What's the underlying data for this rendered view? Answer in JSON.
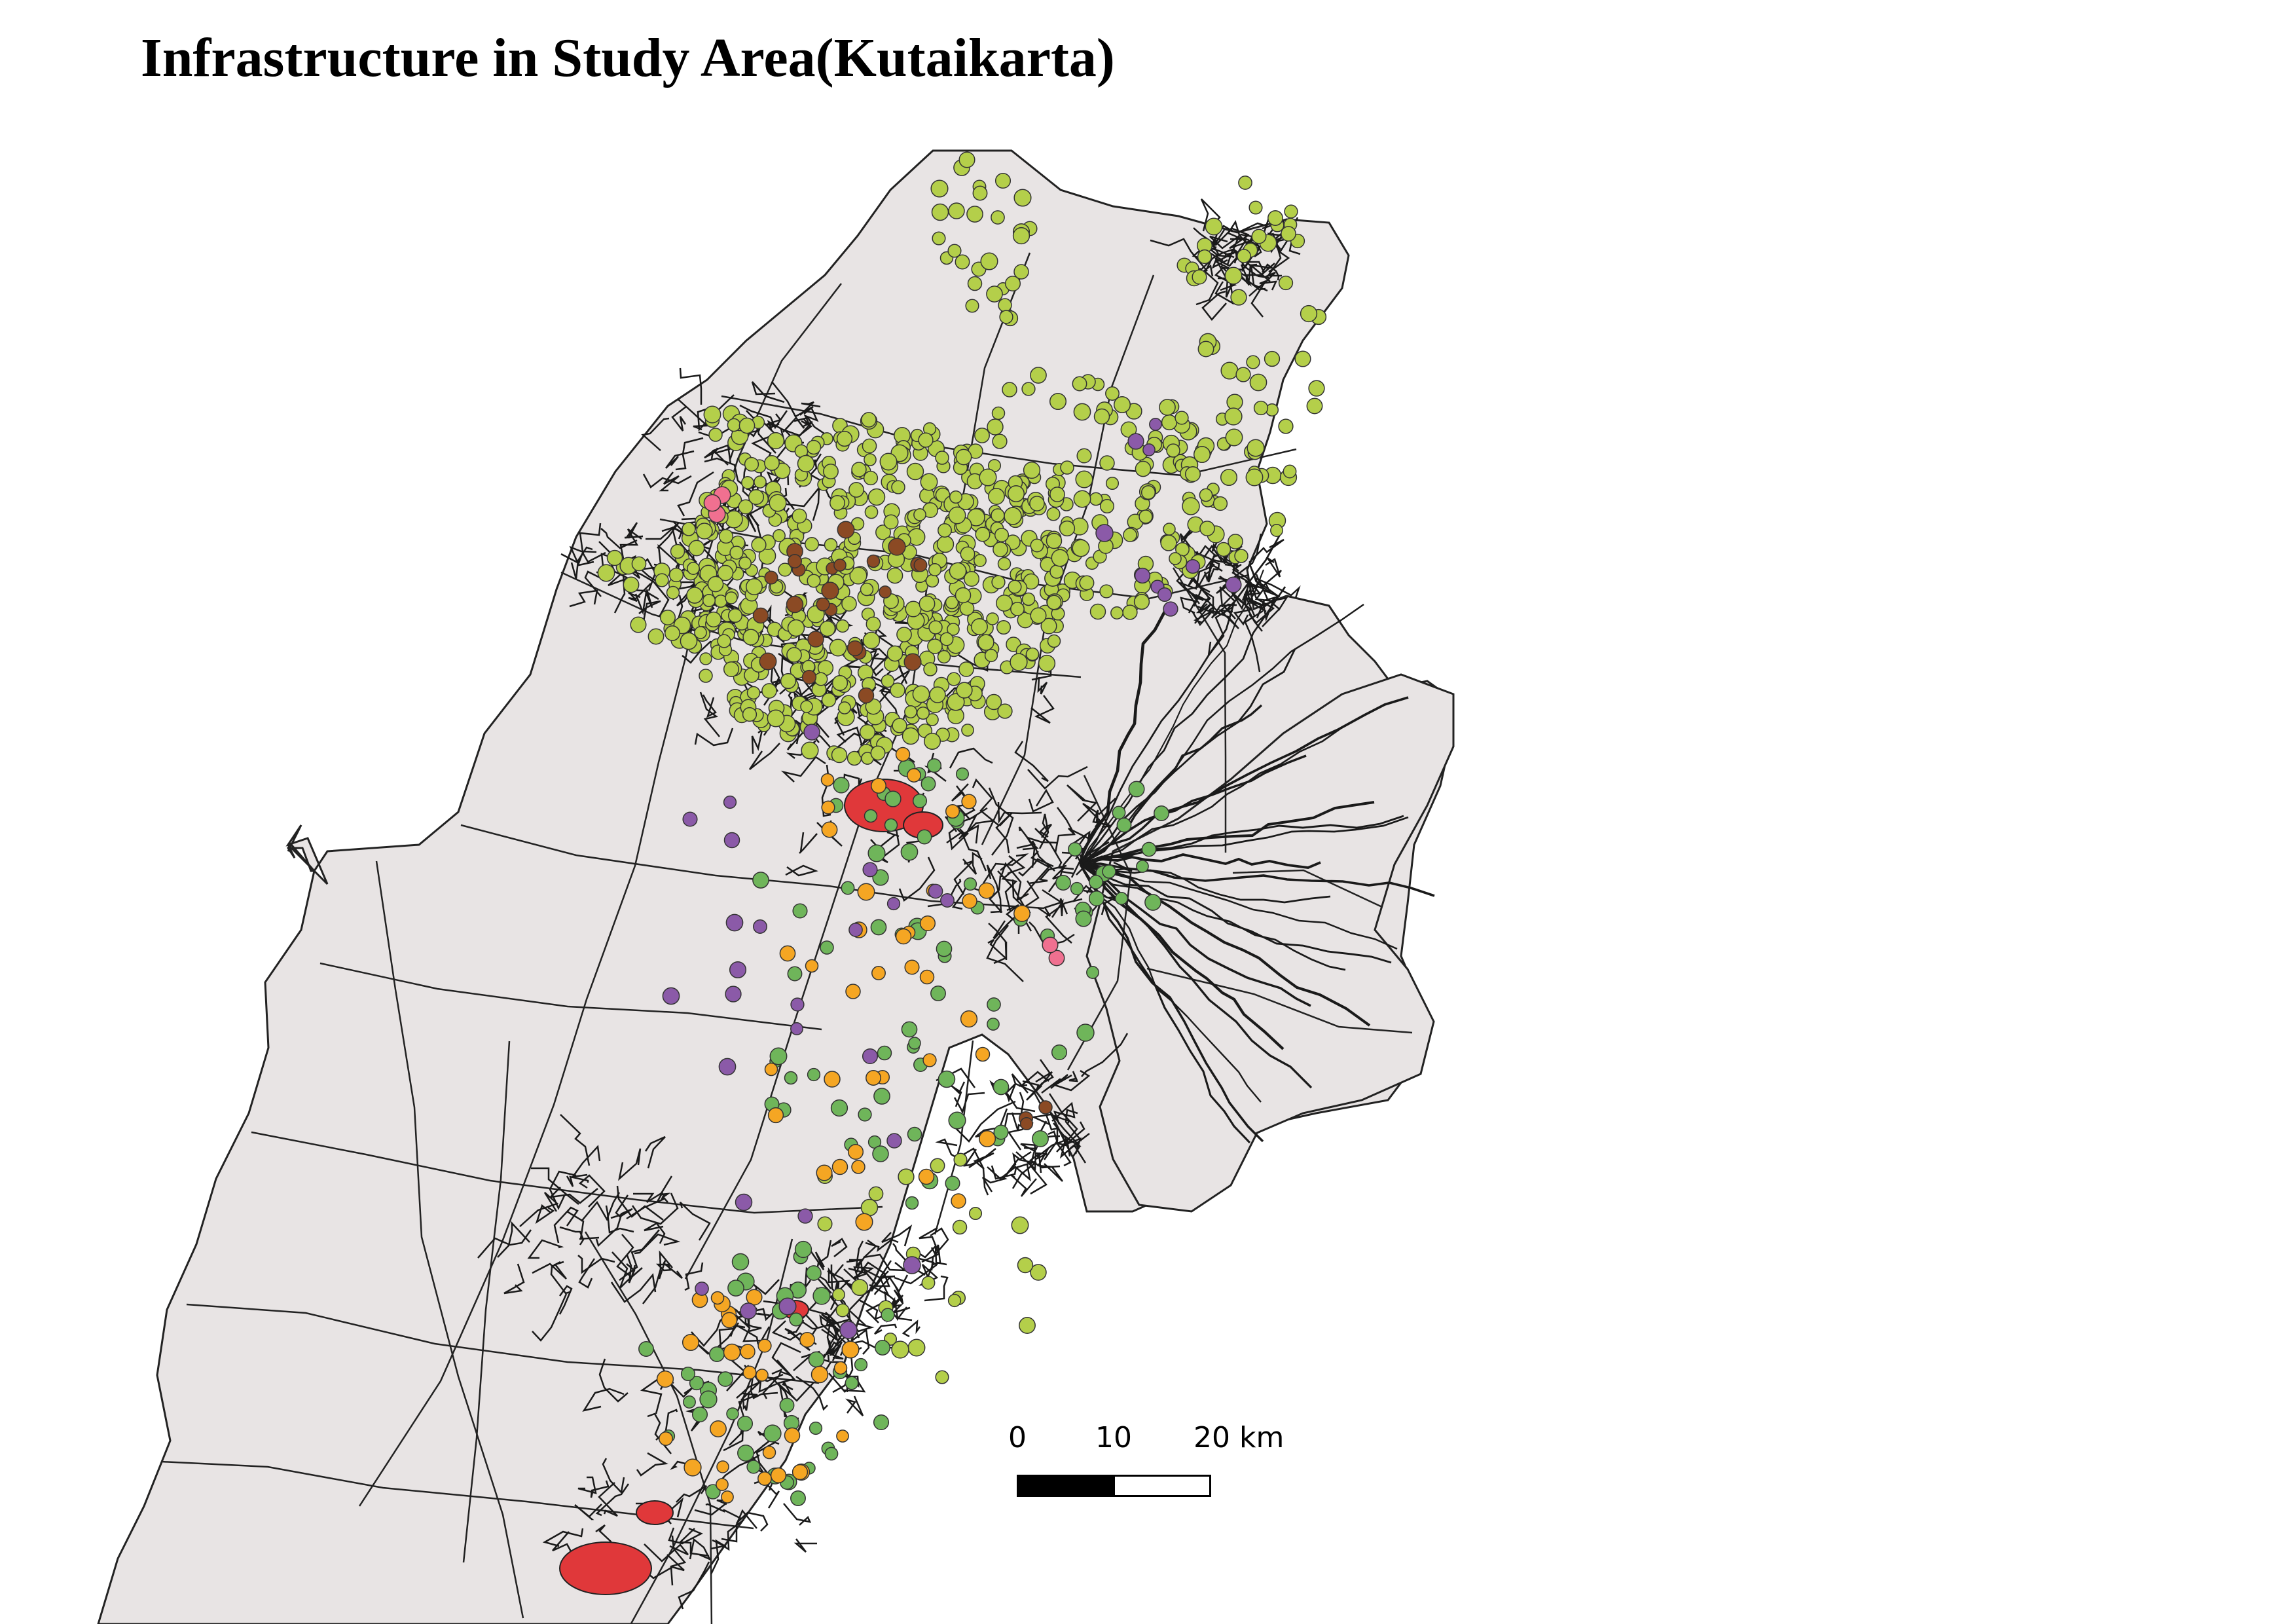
{
  "map": {
    "title": "Infrastructure in Study Area(Kutaikarta)",
    "colors": {
      "land": "#e8e4e4",
      "boundary": "#222222",
      "road": "#1a1a1a",
      "settlement": "#e0383a",
      "water": "#ffffff"
    },
    "point_layers": [
      {
        "icon": "lime-dot",
        "color": "#b4cf4a"
      },
      {
        "icon": "green-dot",
        "color": "#6fb55a"
      },
      {
        "icon": "orange-dot",
        "color": "#f5a623"
      },
      {
        "icon": "purple-dot",
        "color": "#8b5aa8"
      },
      {
        "icon": "brown-dot",
        "color": "#8b4a24"
      },
      {
        "icon": "pink-dot",
        "color": "#f07090"
      }
    ]
  },
  "scale_bar": {
    "labels": [
      "0",
      "10",
      "20 km"
    ],
    "colors": [
      "#000000",
      "#ffffff"
    ]
  }
}
